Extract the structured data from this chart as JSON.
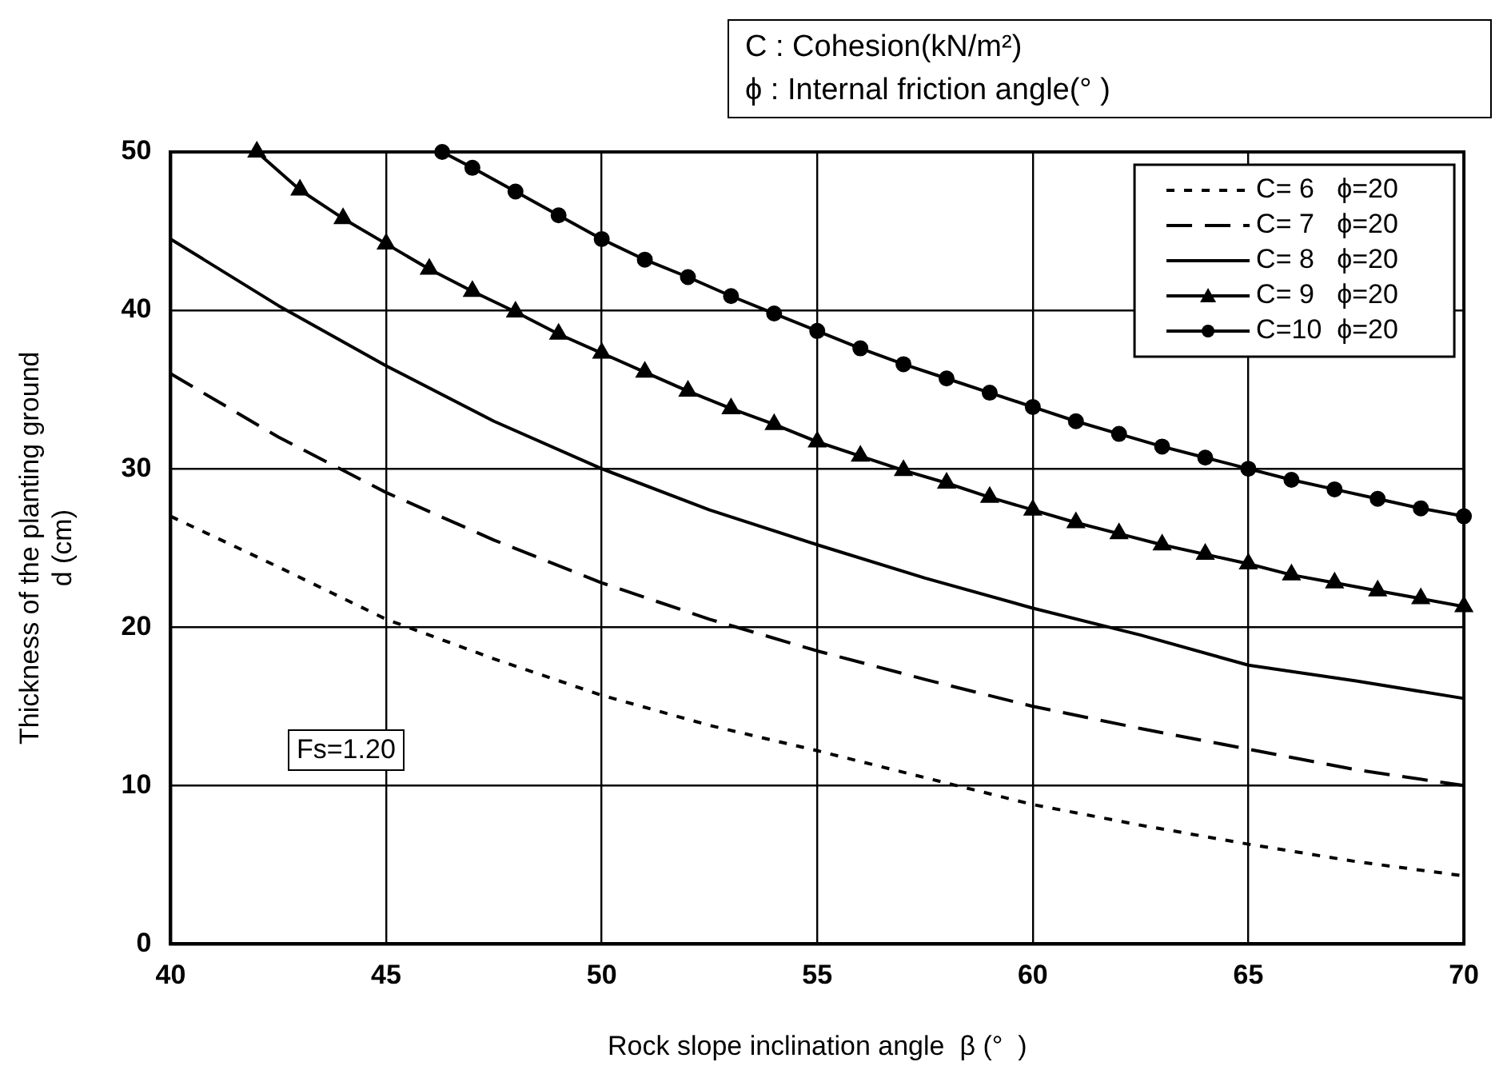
{
  "chart_data": {
    "type": "line",
    "xlabel": "Rock slope inclination angle  β (°  )",
    "ylabel": "Thickness of the planting ground\nd (cm)",
    "xlim": [
      40,
      70
    ],
    "xticks": [
      40,
      45,
      50,
      55,
      60,
      65,
      70
    ],
    "ylim": [
      0,
      50
    ],
    "yticks": [
      0,
      10,
      20,
      30,
      40,
      50
    ],
    "grid": true,
    "legend": "top right",
    "annotations": [
      "C  : Cohesion(kN/m²)",
      "ϕ  : Internal friction angle(°  )",
      "Fs=1.20"
    ],
    "series": [
      {
        "name": "C= 6   ϕ=20",
        "color": "#000000",
        "line_style": "dotted",
        "marker": "none",
        "x": [
          40,
          42.5,
          45,
          47.5,
          50,
          52.5,
          55,
          57.5,
          60,
          62.5,
          65,
          67.5,
          70
        ],
        "values": [
          27,
          23.8,
          20.5,
          18,
          15.7,
          13.8,
          12.2,
          10.5,
          8.8,
          7.5,
          6.3,
          5.2,
          4.3
        ]
      },
      {
        "name": "C= 7   ϕ=20",
        "color": "#000000",
        "line_style": "dashed",
        "marker": "none",
        "x": [
          40,
          42.5,
          45,
          47.5,
          50,
          52.5,
          55,
          57.5,
          60,
          62.5,
          65,
          67.5,
          70
        ],
        "values": [
          36,
          32,
          28.5,
          25.5,
          22.8,
          20.5,
          18.5,
          16.7,
          15,
          13.6,
          12.3,
          11,
          10
        ]
      },
      {
        "name": "C= 8   ϕ=20",
        "color": "#000000",
        "line_style": "solid",
        "marker": "none",
        "x": [
          40,
          42.5,
          45,
          47.5,
          50,
          52.5,
          55,
          57.5,
          60,
          62.5,
          65,
          67.5,
          70
        ],
        "values": [
          44.5,
          40.3,
          36.5,
          33,
          30,
          27.4,
          25.2,
          23.1,
          21.2,
          19.5,
          17.6,
          16.6,
          15.5
        ]
      },
      {
        "name": "C= 9   ϕ=20",
        "color": "#000000",
        "line_style": "solid",
        "marker": "triangle",
        "x": [
          42,
          43,
          44,
          45,
          46,
          47,
          48,
          49,
          50,
          51,
          52,
          53,
          54,
          55,
          56,
          57,
          58,
          59,
          60,
          61,
          62,
          63,
          64,
          65,
          66,
          67,
          68,
          69,
          70
        ],
        "values": [
          50,
          47.6,
          45.8,
          44.2,
          42.6,
          41.2,
          39.9,
          38.5,
          37.3,
          36.1,
          34.9,
          33.8,
          32.8,
          31.7,
          30.8,
          29.9,
          29.1,
          28.2,
          27.4,
          26.6,
          25.9,
          25.2,
          24.6,
          24,
          23.3,
          22.8,
          22.3,
          21.8,
          21.3
        ]
      },
      {
        "name": "C=10  ϕ=20",
        "color": "#000000",
        "line_style": "solid",
        "marker": "circle",
        "x": [
          46.3,
          47,
          48,
          49,
          50,
          51,
          52,
          53,
          54,
          55,
          56,
          57,
          58,
          59,
          60,
          61,
          62,
          63,
          64,
          65,
          66,
          67,
          68,
          69,
          70
        ],
        "values": [
          50,
          49,
          47.5,
          46,
          44.5,
          43.2,
          42.1,
          40.9,
          39.8,
          38.7,
          37.6,
          36.6,
          35.7,
          34.8,
          33.9,
          33,
          32.2,
          31.4,
          30.7,
          30,
          29.3,
          28.7,
          28.1,
          27.5,
          27
        ]
      }
    ]
  }
}
